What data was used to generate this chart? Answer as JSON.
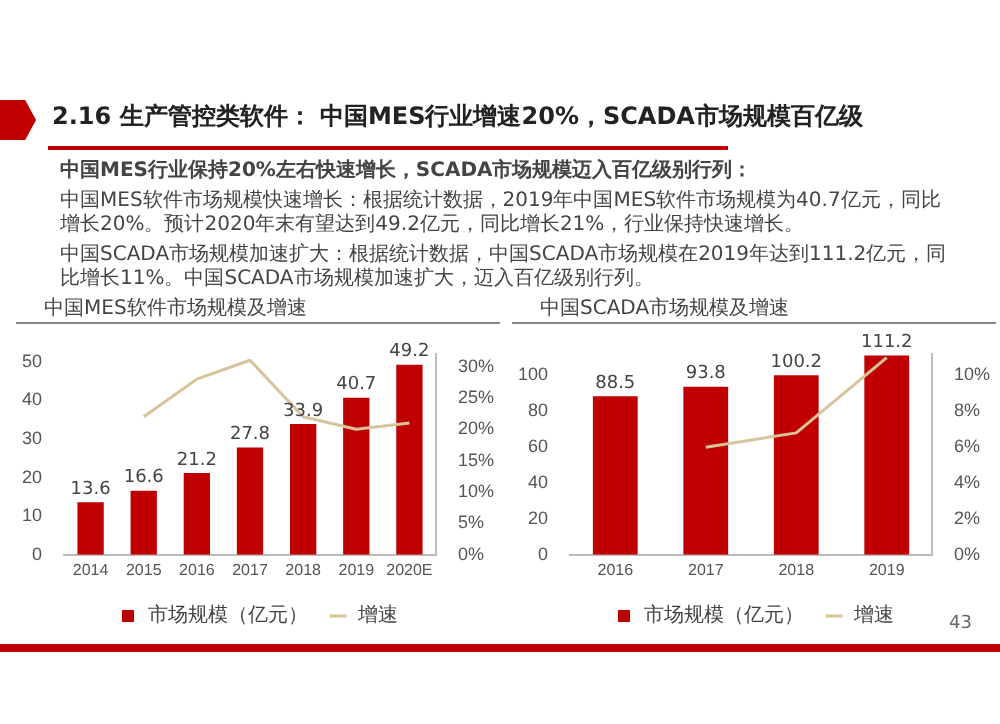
{
  "chart_data": [
    {
      "type": "bar",
      "title": "中国MES软件市场规模及增速",
      "categories": [
        "2014",
        "2015",
        "2016",
        "2017",
        "2018",
        "2019",
        "2020E"
      ],
      "series": [
        {
          "name": "市场规模（亿元）",
          "color": "#c00000",
          "values": [
            13.6,
            16.6,
            21.2,
            27.8,
            33.9,
            40.7,
            49.2
          ],
          "value_labels": [
            "13.6",
            "16.6",
            "21.2",
            "27.8",
            "33.9",
            "40.7",
            "49.2"
          ]
        },
        {
          "type": "line",
          "name": "增速",
          "color": "#d8c39a",
          "axis": "y2",
          "values": [
            null,
            22,
            28,
            31,
            22,
            20,
            21
          ]
        }
      ],
      "ylim": [
        0,
        52
      ],
      "yticks": [
        0,
        10,
        20,
        30,
        40,
        50
      ],
      "y2lim": [
        0,
        32
      ],
      "y2ticks": [
        {
          "value": 0,
          "label": "0%"
        },
        {
          "value": 5,
          "label": "5%"
        },
        {
          "value": 10,
          "label": "10%"
        },
        {
          "value": 15,
          "label": "15%"
        },
        {
          "value": 20,
          "label": "20%"
        },
        {
          "value": 25,
          "label": "25%"
        },
        {
          "value": 30,
          "label": "30%"
        }
      ],
      "grid": false,
      "legend": "bottom",
      "marker": "none",
      "line_style": "solid",
      "annotations": [
        "2.16 生产管控类软件： 中国MES行业增速20%，SCADA市场规模百亿级",
        "中国MES行业保持20%左右快速增长，SCADA市场规模迈入百亿级别行列：",
        "中国MES软件市场规模快速增长：根据统计数据，2019年中国MES软件市场规模为40.7亿元，同比增长20%。预计2020年末有望达到49.2亿元，同比增长21%，行业保持快速增长。",
        "中国SCADA市场规模加速扩大：根据统计数据，中国SCADA市场规模在2019年达到111.2亿元，同比增长11%。中国SCADA市场规模加速扩大，迈入百亿级别行列。"
      ]
    },
    {
      "type": "bar",
      "title": "中国SCADA市场规模及增速",
      "categories": [
        "2016",
        "2017",
        "2018",
        "2019"
      ],
      "series": [
        {
          "name": "市场规模（亿元）",
          "color": "#c00000",
          "values": [
            88.5,
            93.8,
            100.2,
            111.2
          ],
          "value_labels": [
            "88.5",
            "93.8",
            "100.2",
            "111.2"
          ]
        },
        {
          "type": "line",
          "name": "增速",
          "color": "#d8c39a",
          "axis": "y2",
          "values": [
            null,
            6,
            6.8,
            11
          ]
        }
      ],
      "ylim": [
        0,
        112
      ],
      "yticks": [
        0,
        20,
        40,
        60,
        80,
        100
      ],
      "y2lim": [
        0,
        11.2
      ],
      "y2ticks": [
        {
          "value": 0,
          "label": "0%"
        },
        {
          "value": 2,
          "label": "2%"
        },
        {
          "value": 4,
          "label": "4%"
        },
        {
          "value": 6,
          "label": "6%"
        },
        {
          "value": 8,
          "label": "8%"
        },
        {
          "value": 10,
          "label": "10%"
        }
      ],
      "grid": false,
      "legend": "bottom",
      "marker": "none",
      "line_style": "solid",
      "annotations": [
        "43"
      ]
    }
  ]
}
